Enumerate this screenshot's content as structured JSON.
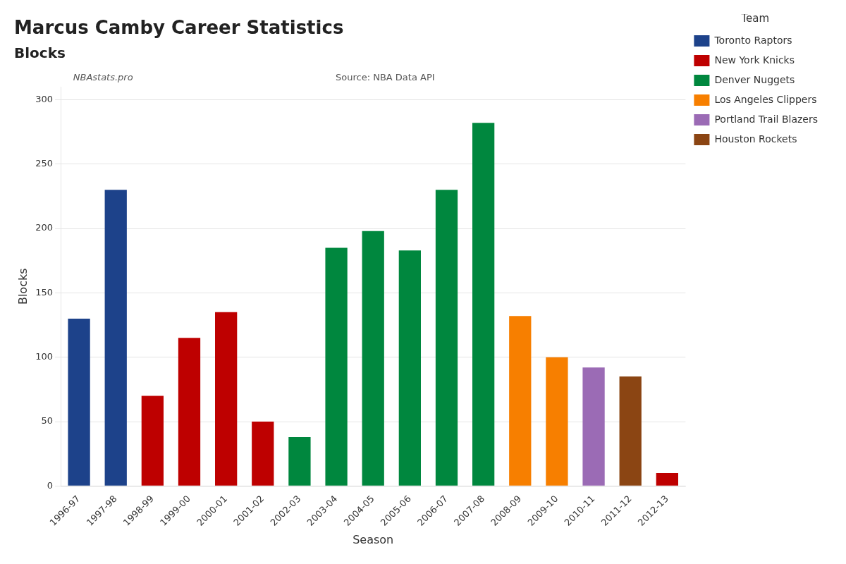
{
  "chart_data": {
    "type": "bar",
    "title": "Marcus Camby Career Statistics",
    "subtitle": "Blocks",
    "xlabel": "Season",
    "ylabel": "Blocks",
    "annotations": [
      "NBAstats.pro",
      "Source: NBA Data API"
    ],
    "legend_title": "Team",
    "legend": "right",
    "grid": true,
    "stacked": true,
    "categories": [
      "1996-97",
      "1997-98",
      "1998-99",
      "1999-00",
      "2000-01",
      "2001-02",
      "2002-03",
      "2003-04",
      "2004-05",
      "2005-06",
      "2006-07",
      "2007-08",
      "2008-09",
      "2009-10",
      "2010-11",
      "2011-12",
      "2012-13"
    ],
    "series": [
      {
        "name": "Toronto Raptors",
        "color": "#1D428A",
        "values": [
          130,
          230,
          null,
          null,
          null,
          null,
          null,
          null,
          null,
          null,
          null,
          null,
          null,
          null,
          null,
          null,
          null
        ]
      },
      {
        "name": "New York Knicks",
        "color": "#BE0000",
        "values": [
          null,
          null,
          70,
          115,
          135,
          50,
          null,
          null,
          null,
          null,
          null,
          null,
          null,
          null,
          null,
          null,
          10
        ]
      },
      {
        "name": "Denver Nuggets",
        "color": "#00873E",
        "values": [
          null,
          null,
          null,
          null,
          null,
          null,
          38,
          185,
          198,
          183,
          230,
          282,
          null,
          null,
          null,
          null,
          null
        ]
      },
      {
        "name": "Los Angeles Clippers",
        "color": "#F77F00",
        "values": [
          null,
          null,
          null,
          null,
          null,
          null,
          null,
          null,
          null,
          null,
          null,
          null,
          132,
          100,
          null,
          null,
          null
        ]
      },
      {
        "name": "Portland Trail Blazers",
        "color": "#9B6BB5",
        "values": [
          null,
          null,
          null,
          null,
          null,
          null,
          null,
          null,
          null,
          null,
          null,
          null,
          null,
          null,
          92,
          null,
          null
        ]
      },
      {
        "name": "Houston Rockets",
        "color": "#8B4513",
        "values": [
          null,
          null,
          null,
          null,
          null,
          null,
          null,
          null,
          null,
          null,
          null,
          null,
          null,
          null,
          null,
          85,
          null
        ]
      }
    ],
    "ylim": [
      0,
      310
    ],
    "yticks": [
      0,
      50,
      100,
      150,
      200,
      250,
      300
    ]
  }
}
